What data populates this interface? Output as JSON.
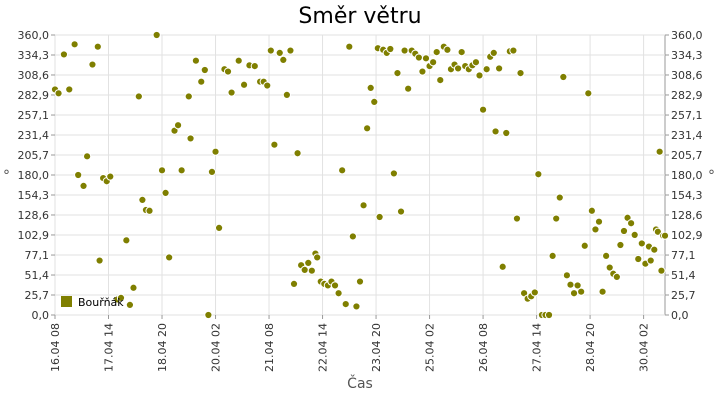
{
  "chart_data": {
    "type": "scatter",
    "title": "Směr větru",
    "xlabel": "Čas",
    "ylabel": "°",
    "ylim": [
      0,
      360
    ],
    "xlim": [
      "2014-04-16 08:00",
      "2014-04-30 14:00"
    ],
    "grid": true,
    "legend_placement": "bottom-left",
    "y_ticks": [
      "0,0",
      "25,7",
      "51,4",
      "77,1",
      "102,9",
      "128,6",
      "154,3",
      "180,0",
      "205,7",
      "231,4",
      "257,1",
      "282,9",
      "308,6",
      "334,3",
      "360,0"
    ],
    "x_ticks": [
      {
        "label": "16.04 08",
        "t": "2014-04-16 08:00"
      },
      {
        "label": "17.04 14",
        "t": "2014-04-17 14:00"
      },
      {
        "label": "18.04 20",
        "t": "2014-04-18 20:00"
      },
      {
        "label": "20.04 02",
        "t": "2014-04-20 02:00"
      },
      {
        "label": "21.04 08",
        "t": "2014-04-21 08:00"
      },
      {
        "label": "22.04 14",
        "t": "2014-04-22 14:00"
      },
      {
        "label": "23.04 20",
        "t": "2014-04-23 20:00"
      },
      {
        "label": "25.04 02",
        "t": "2014-04-25 02:00"
      },
      {
        "label": "26.04 08",
        "t": "2014-04-26 08:00"
      },
      {
        "label": "27.04 14",
        "t": "2014-04-27 14:00"
      },
      {
        "label": "28.04 20",
        "t": "2014-04-28 20:00"
      },
      {
        "label": "30.04 02",
        "t": "2014-04-30 02:00"
      }
    ],
    "series": [
      {
        "name": "Bouřňák",
        "color": "#7f7f00",
        "points": [
          [
            "2014-04-16 08:00",
            290
          ],
          [
            "2014-04-16 10:00",
            285
          ],
          [
            "2014-04-16 13:00",
            335
          ],
          [
            "2014-04-16 16:00",
            290
          ],
          [
            "2014-04-16 19:00",
            348
          ],
          [
            "2014-04-16 21:00",
            180
          ],
          [
            "2014-04-17 00:00",
            166
          ],
          [
            "2014-04-17 02:00",
            204
          ],
          [
            "2014-04-17 05:00",
            322
          ],
          [
            "2014-04-17 08:00",
            345
          ],
          [
            "2014-04-17 09:00",
            70
          ],
          [
            "2014-04-17 11:00",
            176
          ],
          [
            "2014-04-17 13:00",
            172
          ],
          [
            "2014-04-17 15:00",
            178
          ],
          [
            "2014-04-17 19:00",
            20
          ],
          [
            "2014-04-17 21:00",
            22
          ],
          [
            "2014-04-18 00:00",
            96
          ],
          [
            "2014-04-18 02:00",
            13
          ],
          [
            "2014-04-18 04:00",
            35
          ],
          [
            "2014-04-18 07:00",
            281
          ],
          [
            "2014-04-18 09:00",
            148
          ],
          [
            "2014-04-18 11:00",
            135
          ],
          [
            "2014-04-18 13:00",
            134
          ],
          [
            "2014-04-18 17:00",
            360
          ],
          [
            "2014-04-18 20:00",
            186
          ],
          [
            "2014-04-18 22:00",
            157
          ],
          [
            "2014-04-19 00:00",
            74
          ],
          [
            "2014-04-19 03:00",
            237
          ],
          [
            "2014-04-19 05:00",
            244
          ],
          [
            "2014-04-19 07:00",
            186
          ],
          [
            "2014-04-19 11:00",
            281
          ],
          [
            "2014-04-19 12:00",
            227
          ],
          [
            "2014-04-19 15:00",
            327
          ],
          [
            "2014-04-19 18:00",
            300
          ],
          [
            "2014-04-19 20:00",
            315
          ],
          [
            "2014-04-19 22:00",
            0
          ],
          [
            "2014-04-20 00:00",
            184
          ],
          [
            "2014-04-20 02:00",
            210
          ],
          [
            "2014-04-20 04:00",
            112
          ],
          [
            "2014-04-20 07:00",
            316
          ],
          [
            "2014-04-20 09:00",
            313
          ],
          [
            "2014-04-20 11:00",
            286
          ],
          [
            "2014-04-20 15:00",
            327
          ],
          [
            "2014-04-20 18:00",
            296
          ],
          [
            "2014-04-20 21:00",
            321
          ],
          [
            "2014-04-21 00:00",
            320
          ],
          [
            "2014-04-21 03:00",
            300
          ],
          [
            "2014-04-21 05:00",
            300
          ],
          [
            "2014-04-21 07:00",
            295
          ],
          [
            "2014-04-21 09:00",
            340
          ],
          [
            "2014-04-21 11:00",
            219
          ],
          [
            "2014-04-21 14:00",
            337
          ],
          [
            "2014-04-21 16:00",
            328
          ],
          [
            "2014-04-21 18:00",
            283
          ],
          [
            "2014-04-21 20:00",
            340
          ],
          [
            "2014-04-21 22:00",
            40
          ],
          [
            "2014-04-22 00:00",
            208
          ],
          [
            "2014-04-22 02:00",
            64
          ],
          [
            "2014-04-22 04:00",
            58
          ],
          [
            "2014-04-22 06:00",
            67
          ],
          [
            "2014-04-22 08:00",
            57
          ],
          [
            "2014-04-22 10:00",
            79
          ],
          [
            "2014-04-22 11:00",
            74
          ],
          [
            "2014-04-22 13:00",
            43
          ],
          [
            "2014-04-22 15:00",
            40
          ],
          [
            "2014-04-22 17:00",
            38
          ],
          [
            "2014-04-22 19:00",
            43
          ],
          [
            "2014-04-22 21:00",
            38
          ],
          [
            "2014-04-22 23:00",
            28
          ],
          [
            "2014-04-23 01:00",
            186
          ],
          [
            "2014-04-23 03:00",
            14
          ],
          [
            "2014-04-23 05:00",
            345
          ],
          [
            "2014-04-23 07:00",
            101
          ],
          [
            "2014-04-23 09:00",
            11
          ],
          [
            "2014-04-23 11:00",
            43
          ],
          [
            "2014-04-23 13:00",
            141
          ],
          [
            "2014-04-23 15:00",
            240
          ],
          [
            "2014-04-23 17:00",
            292
          ],
          [
            "2014-04-23 19:00",
            274
          ],
          [
            "2014-04-23 21:00",
            343
          ],
          [
            "2014-04-23 22:00",
            126
          ],
          [
            "2014-04-24 00:00",
            341
          ],
          [
            "2014-04-24 02:00",
            337
          ],
          [
            "2014-04-24 04:00",
            342
          ],
          [
            "2014-04-24 06:00",
            182
          ],
          [
            "2014-04-24 08:00",
            311
          ],
          [
            "2014-04-24 10:00",
            133
          ],
          [
            "2014-04-24 12:00",
            340
          ],
          [
            "2014-04-24 14:00",
            291
          ],
          [
            "2014-04-24 16:00",
            340
          ],
          [
            "2014-04-24 18:00",
            336
          ],
          [
            "2014-04-24 20:00",
            331
          ],
          [
            "2014-04-24 22:00",
            313
          ],
          [
            "2014-04-25 00:00",
            330
          ],
          [
            "2014-04-25 02:00",
            320
          ],
          [
            "2014-04-25 04:00",
            325
          ],
          [
            "2014-04-25 06:00",
            338
          ],
          [
            "2014-04-25 08:00",
            302
          ],
          [
            "2014-04-25 10:00",
            345
          ],
          [
            "2014-04-25 12:00",
            341
          ],
          [
            "2014-04-25 14:00",
            316
          ],
          [
            "2014-04-25 16:00",
            322
          ],
          [
            "2014-04-25 18:00",
            317
          ],
          [
            "2014-04-25 20:00",
            338
          ],
          [
            "2014-04-25 22:00",
            320
          ],
          [
            "2014-04-26 00:00",
            316
          ],
          [
            "2014-04-26 02:00",
            321
          ],
          [
            "2014-04-26 04:00",
            325
          ],
          [
            "2014-04-26 06:00",
            308
          ],
          [
            "2014-04-26 08:00",
            264
          ],
          [
            "2014-04-26 10:00",
            316
          ],
          [
            "2014-04-26 12:00",
            332
          ],
          [
            "2014-04-26 14:00",
            337
          ],
          [
            "2014-04-26 15:00",
            236
          ],
          [
            "2014-04-26 17:00",
            317
          ],
          [
            "2014-04-26 19:00",
            62
          ],
          [
            "2014-04-26 21:00",
            234
          ],
          [
            "2014-04-26 23:00",
            339
          ],
          [
            "2014-04-27 01:00",
            340
          ],
          [
            "2014-04-27 03:00",
            124
          ],
          [
            "2014-04-27 05:00",
            311
          ],
          [
            "2014-04-27 07:00",
            28
          ],
          [
            "2014-04-27 09:00",
            21
          ],
          [
            "2014-04-27 11:00",
            24
          ],
          [
            "2014-04-27 13:00",
            29
          ],
          [
            "2014-04-27 15:00",
            181
          ],
          [
            "2014-04-27 17:00",
            0
          ],
          [
            "2014-04-27 19:00",
            0
          ],
          [
            "2014-04-27 21:00",
            0
          ],
          [
            "2014-04-27 23:00",
            76
          ],
          [
            "2014-04-28 01:00",
            124
          ],
          [
            "2014-04-28 03:00",
            151
          ],
          [
            "2014-04-28 05:00",
            306
          ],
          [
            "2014-04-28 07:00",
            51
          ],
          [
            "2014-04-28 09:00",
            39
          ],
          [
            "2014-04-28 11:00",
            28
          ],
          [
            "2014-04-28 13:00",
            38
          ],
          [
            "2014-04-28 15:00",
            30
          ],
          [
            "2014-04-28 17:00",
            89
          ],
          [
            "2014-04-28 19:00",
            285
          ],
          [
            "2014-04-28 21:00",
            134
          ],
          [
            "2014-04-28 23:00",
            110
          ],
          [
            "2014-04-29 01:00",
            120
          ],
          [
            "2014-04-29 03:00",
            30
          ],
          [
            "2014-04-29 05:00",
            76
          ],
          [
            "2014-04-29 07:00",
            61
          ],
          [
            "2014-04-29 09:00",
            53
          ],
          [
            "2014-04-29 11:00",
            49
          ],
          [
            "2014-04-29 13:00",
            90
          ],
          [
            "2014-04-29 15:00",
            108
          ],
          [
            "2014-04-29 17:00",
            125
          ],
          [
            "2014-04-29 19:00",
            118
          ],
          [
            "2014-04-29 21:00",
            103
          ],
          [
            "2014-04-29 23:00",
            72
          ],
          [
            "2014-04-30 01:00",
            92
          ],
          [
            "2014-04-30 03:00",
            66
          ],
          [
            "2014-04-30 05:00",
            88
          ],
          [
            "2014-04-30 06:00",
            70
          ],
          [
            "2014-04-30 08:00",
            84
          ],
          [
            "2014-04-30 09:00",
            110
          ],
          [
            "2014-04-30 10:00",
            107
          ],
          [
            "2014-04-30 11:00",
            210
          ],
          [
            "2014-04-30 12:00",
            57
          ],
          [
            "2014-04-30 13:00",
            102
          ],
          [
            "2014-04-30 14:00",
            102
          ]
        ]
      }
    ]
  }
}
